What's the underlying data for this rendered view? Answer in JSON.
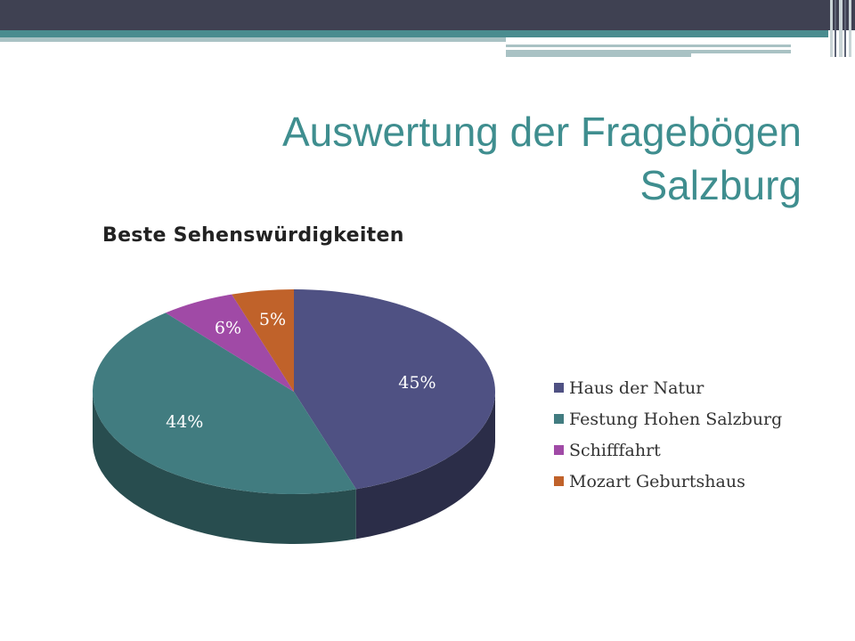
{
  "slide": {
    "title_line1": "Auswertung der Fragebögen",
    "title_line2": "Salzburg"
  },
  "colors": {
    "topbar": "#3f4152",
    "accent_teal": "#4a8c8f",
    "accent_light": "#a9c2c4",
    "title_text": "#3f8e8f"
  },
  "chart_data": {
    "type": "pie",
    "title": "Beste Sehenswürdigkeiten",
    "three_d": true,
    "legend_position": "right",
    "slices": [
      {
        "label": "Haus der Natur",
        "value": 45,
        "display": "45%",
        "color": "#4f5183"
      },
      {
        "label": "Festung Hohen Salzburg",
        "value": 44,
        "display": "44%",
        "color": "#417c80"
      },
      {
        "label": "Schifffahrt",
        "value": 6,
        "display": "6%",
        "color": "#a04aa6"
      },
      {
        "label": "Mozart Geburtshaus",
        "value": 5,
        "display": "5%",
        "color": "#c0622a"
      }
    ]
  }
}
